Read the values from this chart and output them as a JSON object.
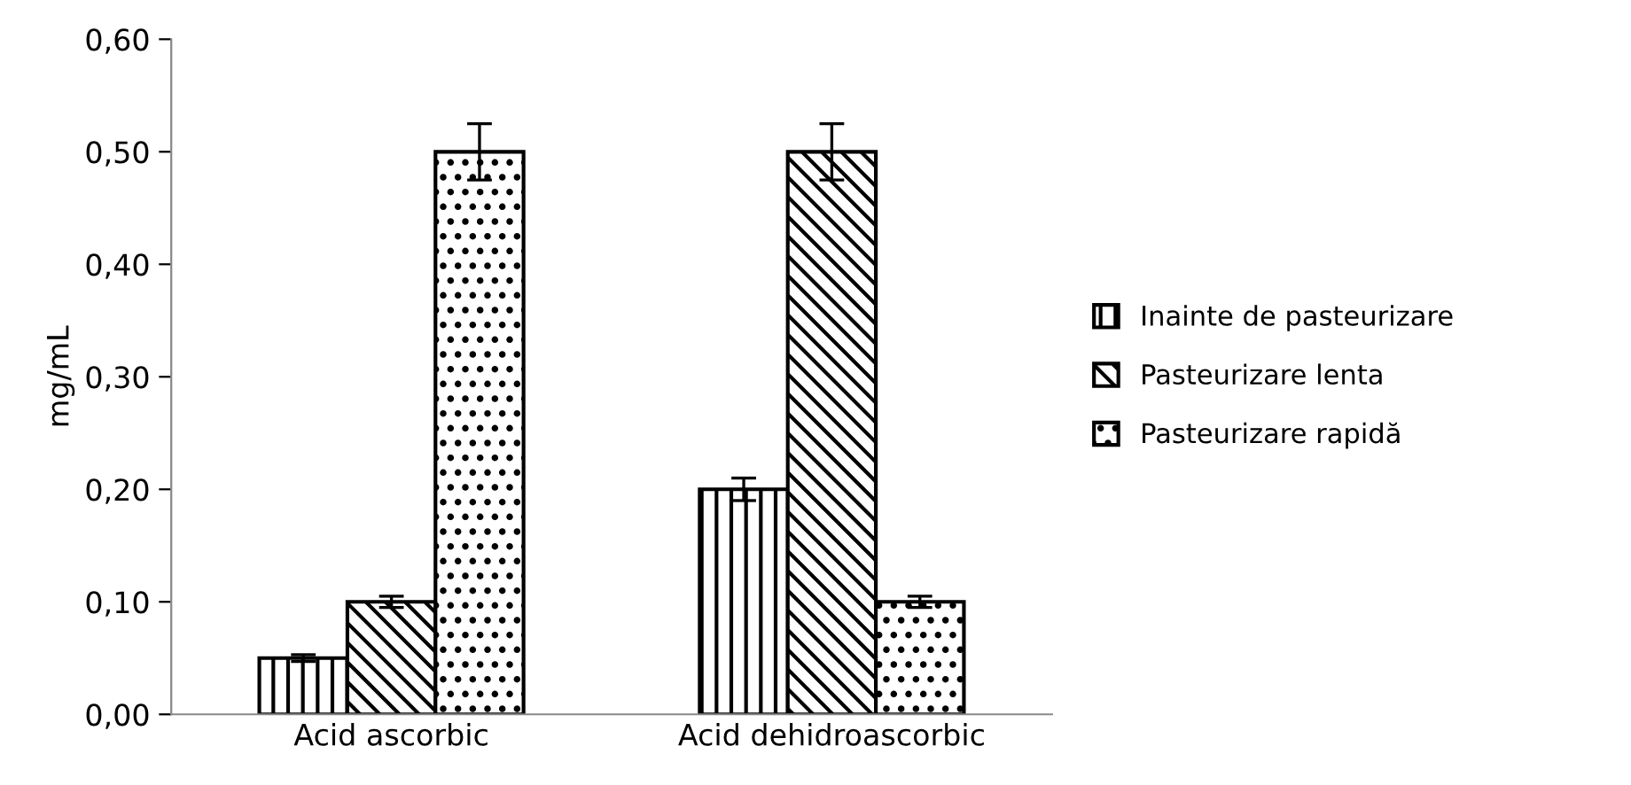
{
  "chart_data": {
    "type": "bar",
    "ylabel": "mg/mL",
    "categories": [
      "Acid ascorbic",
      "Acid dehidroascorbic"
    ],
    "series": [
      {
        "name": "Inainte de pasteurizare",
        "color": "#000000",
        "values": [
          0.05,
          0.2
        ],
        "errors": [
          0.003,
          0.01
        ]
      },
      {
        "name": "Pasteurizare lenta",
        "color": "#000000",
        "values": [
          0.1,
          0.5
        ],
        "errors": [
          0.005,
          0.025
        ]
      },
      {
        "name": "Pasteurizare rapidă",
        "color": "#000000",
        "values": [
          0.5,
          0.1
        ],
        "errors": [
          0.025,
          0.005
        ]
      }
    ],
    "ylim": [
      0,
      0.6
    ],
    "yticks": [
      {
        "value": 0,
        "label": "0,00"
      },
      {
        "value": 0.1,
        "label": "0,10"
      },
      {
        "value": 0.2,
        "label": "0,20"
      },
      {
        "value": 0.3,
        "label": "0,30"
      },
      {
        "value": 0.4,
        "label": "0,40"
      },
      {
        "value": 0.5,
        "label": "0,50"
      },
      {
        "value": 0.6,
        "label": "0,60"
      }
    ],
    "grid": false,
    "legend": "right"
  }
}
